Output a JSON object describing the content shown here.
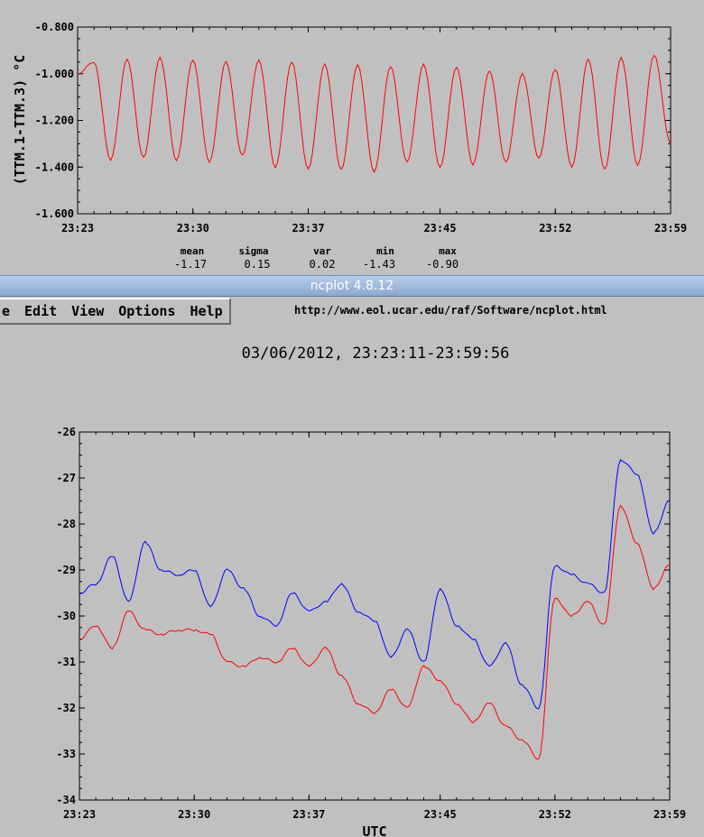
{
  "window": {
    "title": "ncplot 4.8.12"
  },
  "menu": {
    "items": [
      "e",
      "Edit",
      "View",
      "Options",
      "Help"
    ]
  },
  "url": "http://www.eol.ucar.edu/raf/Software/ncplot.html",
  "date_range": "03/06/2012, 23:23:11-23:59:56",
  "colors": {
    "background": "#c0c0c0",
    "red_series": "#ff0000",
    "blue_series": "#0000ff",
    "titlebar": "#9bb6da"
  },
  "stats": {
    "headers": [
      "mean",
      "sigma",
      "var",
      "min",
      "max"
    ],
    "values": [
      "-1.17",
      "0.15",
      "0.02",
      "-1.43",
      "-0.90"
    ]
  },
  "chart_data": [
    {
      "type": "line",
      "ylabel": "(TTM.1-TTM.3) °C",
      "xlabel": "",
      "x_ticks": [
        "23:23",
        "23:30",
        "23:37",
        "23:45",
        "23:52",
        "23:59"
      ],
      "y_ticks": [
        "-0.800",
        "-1.000",
        "-1.200",
        "-1.400",
        "-1.600"
      ],
      "ylim": [
        -1.6,
        -0.8
      ],
      "grid": false,
      "series": [
        {
          "color": "#ff0000",
          "description": "oscillating difference, ~17 cycles over 23:23-23:59",
          "x": [
            "23:23",
            "23:24",
            "23:25",
            "23:26",
            "23:27",
            "23:28",
            "23:29",
            "23:30",
            "23:31",
            "23:32",
            "23:33",
            "23:34",
            "23:35",
            "23:36",
            "23:37",
            "23:38",
            "23:39",
            "23:40",
            "23:41",
            "23:42",
            "23:43",
            "23:44",
            "23:45",
            "23:46",
            "23:47",
            "23:48",
            "23:49",
            "23:50",
            "23:51",
            "23:52",
            "23:53",
            "23:54",
            "23:55",
            "23:56",
            "23:57",
            "23:58",
            "23:59"
          ],
          "values": [
            -1.0,
            -0.95,
            -1.37,
            -0.94,
            -1.36,
            -0.93,
            -1.37,
            -0.94,
            -1.38,
            -0.95,
            -1.35,
            -0.94,
            -1.4,
            -0.95,
            -1.41,
            -0.96,
            -1.41,
            -0.96,
            -1.42,
            -0.97,
            -1.38,
            -0.96,
            -1.4,
            -0.97,
            -1.39,
            -0.99,
            -1.38,
            -1.0,
            -1.36,
            -0.98,
            -1.4,
            -0.94,
            -1.41,
            -0.93,
            -1.39,
            -0.92,
            -1.3
          ]
        }
      ]
    },
    {
      "type": "line",
      "xlabel": "UTC",
      "ylabel": "",
      "x_ticks": [
        "23:23",
        "23:30",
        "23:37",
        "23:45",
        "23:52",
        "23:59"
      ],
      "y_ticks": [
        "-26",
        "-27",
        "-28",
        "-29",
        "-30",
        "-31",
        "-32",
        "-33",
        "-34"
      ],
      "ylim": [
        -34,
        -26
      ],
      "grid": false,
      "series": [
        {
          "color": "#0000ff",
          "x": [
            "23:23",
            "23:24",
            "23:25",
            "23:26",
            "23:27",
            "23:28",
            "23:29",
            "23:30",
            "23:31",
            "23:32",
            "23:33",
            "23:34",
            "23:35",
            "23:36",
            "23:37",
            "23:38",
            "23:39",
            "23:40",
            "23:41",
            "23:42",
            "23:43",
            "23:44",
            "23:45",
            "23:46",
            "23:47",
            "23:48",
            "23:49",
            "23:50",
            "23:51",
            "23:52",
            "23:53",
            "23:54",
            "23:55",
            "23:56",
            "23:57",
            "23:58",
            "23:59"
          ],
          "values": [
            -29.5,
            -29.3,
            -28.7,
            -29.7,
            -28.4,
            -29.0,
            -29.1,
            -29.0,
            -29.8,
            -29.0,
            -29.4,
            -30.0,
            -30.2,
            -29.5,
            -29.9,
            -29.7,
            -29.3,
            -29.9,
            -30.1,
            -30.9,
            -30.3,
            -31.0,
            -29.4,
            -30.2,
            -30.5,
            -31.1,
            -30.6,
            -31.5,
            -32.0,
            -28.9,
            -29.1,
            -29.3,
            -29.5,
            -26.6,
            -26.9,
            -28.2,
            -27.5
          ]
        },
        {
          "color": "#ff0000",
          "x": [
            "23:23",
            "23:24",
            "23:25",
            "23:26",
            "23:27",
            "23:28",
            "23:29",
            "23:30",
            "23:31",
            "23:32",
            "23:33",
            "23:34",
            "23:35",
            "23:36",
            "23:37",
            "23:38",
            "23:39",
            "23:40",
            "23:41",
            "23:42",
            "23:43",
            "23:44",
            "23:45",
            "23:46",
            "23:47",
            "23:48",
            "23:49",
            "23:50",
            "23:51",
            "23:52",
            "23:53",
            "23:54",
            "23:55",
            "23:56",
            "23:57",
            "23:58",
            "23:59"
          ],
          "values": [
            -30.5,
            -30.2,
            -30.7,
            -29.9,
            -30.3,
            -30.4,
            -30.3,
            -30.3,
            -30.4,
            -31.0,
            -31.1,
            -30.9,
            -31.0,
            -30.7,
            -31.1,
            -30.7,
            -31.3,
            -31.9,
            -32.1,
            -31.6,
            -32.0,
            -31.1,
            -31.4,
            -31.9,
            -32.3,
            -31.9,
            -32.4,
            -32.7,
            -33.1,
            -29.6,
            -30.0,
            -29.7,
            -30.2,
            -27.6,
            -28.4,
            -29.4,
            -28.9
          ]
        }
      ]
    }
  ]
}
